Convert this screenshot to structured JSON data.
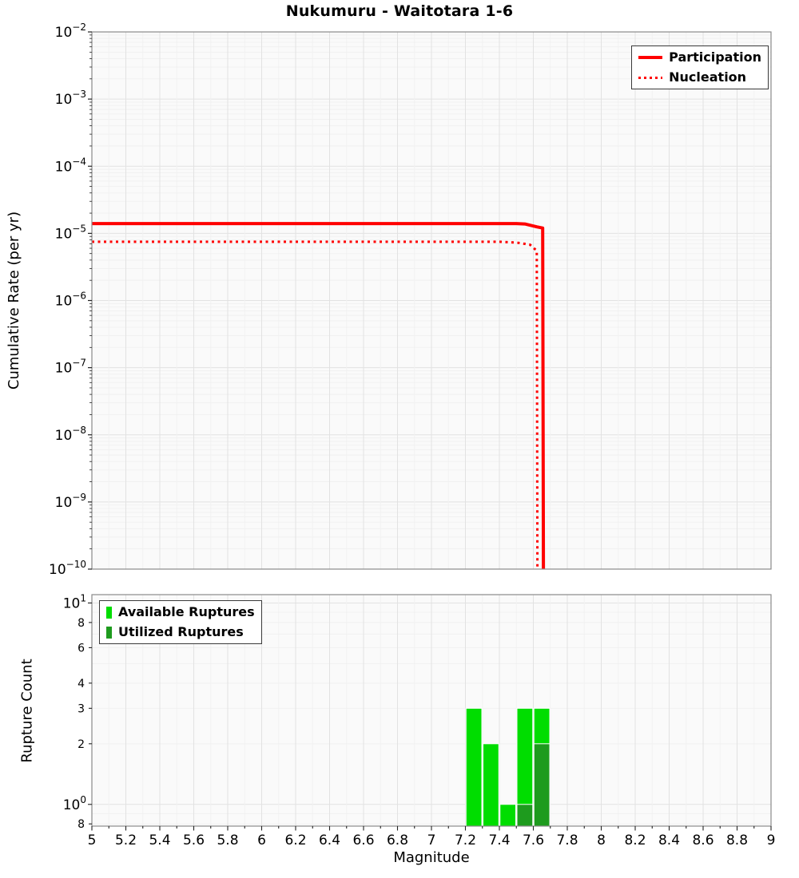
{
  "chart_data": [
    {
      "type": "line",
      "title": "Nukumuru - Waitotara 1-6",
      "xlabel": "Magnitude",
      "ylabel": "Cumulative Rate (per yr)",
      "x_axis": {
        "min": 5,
        "max": 9
      },
      "y_axis": {
        "scale": "log",
        "min": 1e-10,
        "max": 0.01,
        "tick_exponents": [
          -2,
          -3,
          -4,
          -5,
          -6,
          -7,
          -8,
          -9,
          -10
        ]
      },
      "legend": {
        "position": "top-right"
      },
      "series": [
        {
          "name": "Participation",
          "color": "#ff0000",
          "line_style": "solid",
          "line_width": 4,
          "points": [
            [
              5.0,
              1.4e-05
            ],
            [
              7.5,
              1.4e-05
            ],
            [
              7.55,
              1.38e-05
            ],
            [
              7.62,
              1.25e-05
            ],
            [
              7.655,
              1.2e-05
            ],
            [
              7.66,
              1e-11
            ]
          ]
        },
        {
          "name": "Nucleation",
          "color": "#ff0000",
          "line_style": "dotted",
          "line_width": 3,
          "points": [
            [
              5.0,
              7.5e-06
            ],
            [
              7.4,
              7.5e-06
            ],
            [
              7.5,
              7.3e-06
            ],
            [
              7.58,
              6.8e-06
            ],
            [
              7.62,
              5.5e-06
            ],
            [
              7.625,
              1e-11
            ]
          ]
        }
      ]
    },
    {
      "type": "bar",
      "xlabel": "Magnitude",
      "ylabel": "Rupture Count",
      "bin_width": 0.1,
      "x_axis": {
        "min": 5,
        "max": 9,
        "ticks": [
          {
            "v": 5,
            "label": "5"
          },
          {
            "v": 5.2,
            "label": "5.2"
          },
          {
            "v": 5.4,
            "label": "5.4"
          },
          {
            "v": 5.6,
            "label": "5.6"
          },
          {
            "v": 5.8,
            "label": "5.8"
          },
          {
            "v": 6,
            "label": "6"
          },
          {
            "v": 6.2,
            "label": "6.2"
          },
          {
            "v": 6.4,
            "label": "6.4"
          },
          {
            "v": 6.6,
            "label": "6.6"
          },
          {
            "v": 6.8,
            "label": "6.8"
          },
          {
            "v": 7,
            "label": "7"
          },
          {
            "v": 7.2,
            "label": "7.2"
          },
          {
            "v": 7.4,
            "label": "7.4"
          },
          {
            "v": 7.6,
            "label": "7.6"
          },
          {
            "v": 7.8,
            "label": "7.8"
          },
          {
            "v": 8,
            "label": "8"
          },
          {
            "v": 8.2,
            "label": "8.2"
          },
          {
            "v": 8.4,
            "label": "8.4"
          },
          {
            "v": 8.6,
            "label": "8.6"
          },
          {
            "v": 8.8,
            "label": "8.8"
          },
          {
            "v": 9,
            "label": "9"
          }
        ]
      },
      "y_axis": {
        "scale": "log",
        "min": 0.78,
        "max": 11,
        "ticks": [
          {
            "v": 10,
            "exp": 1
          },
          {
            "v": 8,
            "label": "8"
          },
          {
            "v": 6,
            "label": "6"
          },
          {
            "v": 4,
            "label": "4"
          },
          {
            "v": 3,
            "label": "3"
          },
          {
            "v": 2,
            "label": "2"
          },
          {
            "v": 1,
            "exp": 0
          },
          {
            "v": 0.8,
            "label": "8"
          }
        ]
      },
      "legend": {
        "position": "top-left"
      },
      "series": [
        {
          "name": "Available Ruptures",
          "color": "#00dd00",
          "bins": [
            {
              "m": 7.2,
              "count": 3
            },
            {
              "m": 7.3,
              "count": 2
            },
            {
              "m": 7.4,
              "count": 1
            },
            {
              "m": 7.5,
              "count": 3
            },
            {
              "m": 7.6,
              "count": 3
            }
          ]
        },
        {
          "name": "Utilized Ruptures",
          "color": "#1e9b1e",
          "bins": [
            {
              "m": 7.5,
              "count": 1
            },
            {
              "m": 7.6,
              "count": 2
            }
          ]
        }
      ]
    }
  ],
  "colors": {
    "participation": "#ff0000",
    "nucleation": "#ff0000",
    "available": "#00dd00",
    "utilized": "#1e9b1e"
  }
}
